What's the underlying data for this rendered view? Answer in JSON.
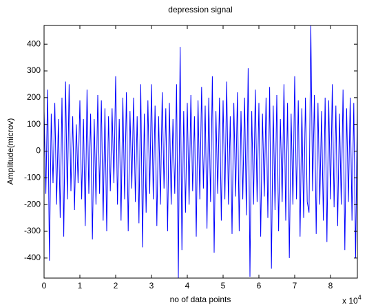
{
  "chart_data": {
    "type": "line",
    "title": "depression signal",
    "x_label": "no of data points",
    "y_label": "Amplitude(microv)",
    "x_multiplier": {
      "base": "x 10",
      "exponent": "4"
    },
    "x": [
      0,
      500,
      1000,
      1500,
      2000,
      2500,
      3000,
      3500,
      4000,
      4500,
      5000,
      5500,
      6000,
      6500,
      7000,
      7500,
      8000,
      8500,
      9000,
      9500,
      10000,
      10500,
      11000,
      11500,
      12000,
      12500,
      13000,
      13500,
      14000,
      14500,
      15000,
      15500,
      16000,
      16500,
      17000,
      17500,
      18000,
      18500,
      19000,
      19500,
      20000,
      20500,
      21000,
      21500,
      22000,
      22500,
      23000,
      23500,
      24000,
      24500,
      25000,
      25500,
      26000,
      26500,
      27000,
      27500,
      28000,
      28500,
      29000,
      29500,
      30000,
      30500,
      31000,
      31500,
      32000,
      32500,
      33000,
      33500,
      34000,
      34500,
      35000,
      35500,
      36000,
      36500,
      37000,
      37500,
      38000,
      38500,
      39000,
      39500,
      40000,
      40500,
      41000,
      41500,
      42000,
      42500,
      43000,
      43500,
      44000,
      44500,
      45000,
      45500,
      46000,
      46500,
      47000,
      47500,
      48000,
      48500,
      49000,
      49500,
      50000,
      50500,
      51000,
      51500,
      52000,
      52500,
      53000,
      53500,
      54000,
      54500,
      55000,
      55500,
      56000,
      56500,
      57000,
      57500,
      58000,
      58500,
      59000,
      59500,
      60000,
      60500,
      61000,
      61500,
      62000,
      62500,
      63000,
      63500,
      64000,
      64500,
      65000,
      65500,
      66000,
      66500,
      67000,
      67500,
      68000,
      68500,
      69000,
      69500,
      70000,
      70500,
      71000,
      71500,
      72000,
      72500,
      73000,
      73500,
      74000,
      74500,
      75000,
      75500,
      76000,
      76500,
      77000,
      77500,
      78000,
      78500,
      79000,
      79500,
      80000,
      80500,
      81000,
      81500,
      82000,
      82500,
      83000,
      83500,
      84000,
      84500,
      85000,
      85500,
      86000,
      86500,
      87000,
      87500
    ],
    "series": [
      {
        "color": "#0000ff",
        "values": [
          150,
          -160,
          230,
          -410,
          140,
          -120,
          180,
          -200,
          120,
          -250,
          200,
          -320,
          260,
          -180,
          250,
          -150,
          130,
          -220,
          100,
          -120,
          190,
          -180,
          120,
          -280,
          230,
          -160,
          140,
          -330,
          120,
          -200,
          210,
          -160,
          190,
          -260,
          160,
          -300,
          130,
          -150,
          160,
          -120,
          280,
          -200,
          120,
          -260,
          200,
          -180,
          220,
          -300,
          150,
          -140,
          200,
          -190,
          130,
          -270,
          250,
          -360,
          140,
          -230,
          190,
          -160,
          250,
          -180,
          170,
          -280,
          130,
          -200,
          220,
          -140,
          160,
          -300,
          180,
          -200,
          120,
          -160,
          250,
          -475,
          390,
          -370,
          150,
          -230,
          180,
          -200,
          210,
          -150,
          130,
          -320,
          190,
          -180,
          240,
          -140,
          170,
          -290,
          200,
          -190,
          280,
          -380,
          150,
          -160,
          200,
          -260,
          190,
          -180,
          260,
          -200,
          130,
          -310,
          180,
          -170,
          220,
          -300,
          150,
          -180,
          200,
          -240,
          310,
          -470,
          150,
          -200,
          230,
          -190,
          180,
          -320,
          140,
          -170,
          200,
          -250,
          240,
          -440,
          170,
          -220,
          210,
          -300,
          120,
          -190,
          250,
          -260,
          180,
          -400,
          140,
          -200,
          280,
          -180,
          190,
          -320,
          160,
          -250,
          200,
          -190,
          -230,
          470,
          -150,
          210,
          -310,
          180,
          -200,
          150,
          -260,
          200,
          -340,
          190,
          -180,
          250,
          -210,
          170,
          -280,
          140,
          -200,
          230,
          -370,
          160,
          -190,
          200,
          -260,
          180,
          -400,
          160
        ]
      }
    ],
    "xlim": [
      0,
      87500
    ],
    "ylim": [
      -475,
      470
    ],
    "xticks": [
      0,
      {
        "value": 10000,
        "label": "1"
      },
      {
        "value": 20000,
        "label": "2"
      },
      {
        "value": 30000,
        "label": "3"
      },
      {
        "value": 40000,
        "label": "4"
      },
      {
        "value": 50000,
        "label": "5"
      },
      {
        "value": 60000,
        "label": "6"
      },
      {
        "value": 70000,
        "label": "7"
      },
      {
        "value": 80000,
        "label": "8"
      }
    ],
    "yticks": [
      -400,
      -300,
      -200,
      -100,
      0,
      100,
      200,
      300,
      400
    ]
  }
}
